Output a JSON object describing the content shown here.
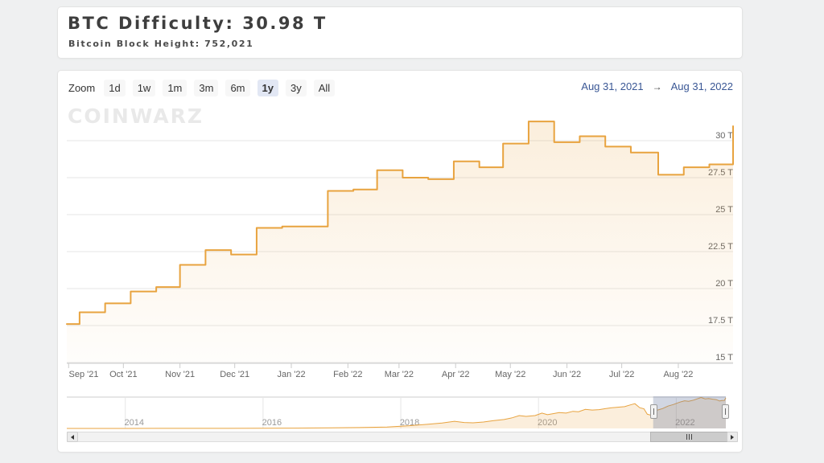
{
  "header": {
    "title": "BTC Difficulty: 30.98 T",
    "subtitle": "Bitcoin Block Height: 752,021"
  },
  "range_selector": {
    "zoom_label": "Zoom",
    "buttons": [
      "1d",
      "1w",
      "1m",
      "3m",
      "6m",
      "1y",
      "3y",
      "All"
    ],
    "selected": "1y",
    "from_date": "Aug 31, 2021",
    "arrow": "→",
    "to_date": "Aug 31, 2022"
  },
  "watermark": "CoinWarz",
  "colors": {
    "accent_orange": "#e8a33f",
    "area_fill_top": "rgba(232,163,63,0.18)",
    "area_fill_bottom": "rgba(232,163,63,0.02)",
    "gridline": "#e6e6e6",
    "axis_line": "#cccccc",
    "axis_label": "#666666",
    "nav_label": "#999999",
    "selection_mask": "rgba(102,120,160,0.3)",
    "link_blue": "#3a5795"
  },
  "chart_data": {
    "type": "area",
    "step": true,
    "title": "",
    "xlabel": "",
    "ylabel": "",
    "unit": "T",
    "grid": true,
    "legend": false,
    "series_name": "BTC Difficulty",
    "xlim_dates": [
      "2021-08-31",
      "2022-08-31"
    ],
    "ylim": [
      15,
      31.5
    ],
    "y_ticks": [
      {
        "value": 15,
        "label": "15 T"
      },
      {
        "value": 17.5,
        "label": "17.5 T"
      },
      {
        "value": 20,
        "label": "20 T"
      },
      {
        "value": 22.5,
        "label": "22.5 T"
      },
      {
        "value": 25,
        "label": "25 T"
      },
      {
        "value": 27.5,
        "label": "27.5 T"
      },
      {
        "value": 30,
        "label": "30 T"
      }
    ],
    "x_ticks": [
      {
        "date": "2021-09-01",
        "label": "Sep '21"
      },
      {
        "date": "2021-10-01",
        "label": "Oct '21"
      },
      {
        "date": "2021-11-01",
        "label": "Nov '21"
      },
      {
        "date": "2021-12-01",
        "label": "Dec '21"
      },
      {
        "date": "2022-01-01",
        "label": "Jan '22"
      },
      {
        "date": "2022-02-01",
        "label": "Feb '22"
      },
      {
        "date": "2022-03-01",
        "label": "Mar '22"
      },
      {
        "date": "2022-04-01",
        "label": "Apr '22"
      },
      {
        "date": "2022-05-01",
        "label": "May '22"
      },
      {
        "date": "2022-06-01",
        "label": "Jun '22"
      },
      {
        "date": "2022-07-01",
        "label": "Jul '22"
      },
      {
        "date": "2022-08-01",
        "label": "Aug '22"
      }
    ],
    "points": [
      [
        "2021-08-31",
        17.6
      ],
      [
        "2021-09-07",
        18.4
      ],
      [
        "2021-09-21",
        19.0
      ],
      [
        "2021-10-05",
        19.8
      ],
      [
        "2021-10-19",
        20.1
      ],
      [
        "2021-11-01",
        21.6
      ],
      [
        "2021-11-15",
        22.6
      ],
      [
        "2021-11-29",
        22.3
      ],
      [
        "2021-12-13",
        24.1
      ],
      [
        "2021-12-27",
        24.2
      ],
      [
        "2022-01-21",
        26.6
      ],
      [
        "2022-02-04",
        26.7
      ],
      [
        "2022-02-17",
        28.0
      ],
      [
        "2022-03-03",
        27.5
      ],
      [
        "2022-03-17",
        27.4
      ],
      [
        "2022-03-31",
        28.6
      ],
      [
        "2022-04-14",
        28.2
      ],
      [
        "2022-04-27",
        29.8
      ],
      [
        "2022-05-11",
        31.3
      ],
      [
        "2022-05-25",
        29.9
      ],
      [
        "2022-06-08",
        30.3
      ],
      [
        "2022-06-22",
        29.6
      ],
      [
        "2022-07-06",
        29.2
      ],
      [
        "2022-07-21",
        27.7
      ],
      [
        "2022-08-04",
        28.2
      ],
      [
        "2022-08-18",
        28.4
      ],
      [
        "2022-08-31",
        30.98
      ]
    ],
    "navigator": {
      "year_ticks": [
        2014,
        2016,
        2018,
        2020,
        2022
      ],
      "xlim_years": [
        2013.15,
        2022.72
      ],
      "selection_years": [
        2021.665,
        2022.72
      ],
      "points": [
        [
          2013.15,
          0.005
        ],
        [
          2014,
          0.03
        ],
        [
          2014.5,
          0.05
        ],
        [
          2015,
          0.06
        ],
        [
          2015.5,
          0.08
        ],
        [
          2016,
          0.17
        ],
        [
          2016.5,
          0.3
        ],
        [
          2017,
          0.6
        ],
        [
          2017.4,
          0.9
        ],
        [
          2017.8,
          1.5
        ],
        [
          2018.1,
          2.6
        ],
        [
          2018.4,
          4.3
        ],
        [
          2018.6,
          5.5
        ],
        [
          2018.78,
          7.2
        ],
        [
          2018.92,
          6.0
        ],
        [
          2019.05,
          5.7
        ],
        [
          2019.2,
          6.5
        ],
        [
          2019.35,
          7.9
        ],
        [
          2019.5,
          9.0
        ],
        [
          2019.62,
          10.8
        ],
        [
          2019.72,
          13.0
        ],
        [
          2019.82,
          12.2
        ],
        [
          2019.95,
          13.0
        ],
        [
          2020.05,
          15.5
        ],
        [
          2020.13,
          13.9
        ],
        [
          2020.22,
          15.0
        ],
        [
          2020.3,
          16.1
        ],
        [
          2020.4,
          15.5
        ],
        [
          2020.5,
          17.3
        ],
        [
          2020.58,
          16.9
        ],
        [
          2020.68,
          19.3
        ],
        [
          2020.78,
          18.6
        ],
        [
          2020.88,
          19.0
        ],
        [
          2020.97,
          20.0
        ],
        [
          2021.05,
          20.8
        ],
        [
          2021.15,
          21.5
        ],
        [
          2021.25,
          22.0
        ],
        [
          2021.33,
          23.7
        ],
        [
          2021.4,
          25.0
        ],
        [
          2021.47,
          21.0
        ],
        [
          2021.53,
          19.9
        ],
        [
          2021.58,
          14.4
        ],
        [
          2021.63,
          13.5
        ],
        [
          2021.665,
          17.6
        ],
        [
          2021.72,
          18.4
        ],
        [
          2021.8,
          20.1
        ],
        [
          2021.88,
          22.6
        ],
        [
          2021.96,
          24.2
        ],
        [
          2022.05,
          26.6
        ],
        [
          2022.12,
          28.0
        ],
        [
          2022.18,
          27.5
        ],
        [
          2022.25,
          28.6
        ],
        [
          2022.3,
          29.8
        ],
        [
          2022.36,
          31.3
        ],
        [
          2022.42,
          29.9
        ],
        [
          2022.47,
          30.3
        ],
        [
          2022.53,
          29.6
        ],
        [
          2022.58,
          29.2
        ],
        [
          2022.63,
          27.7
        ],
        [
          2022.66,
          28.2
        ],
        [
          2022.7,
          28.4
        ],
        [
          2022.72,
          30.98
        ]
      ]
    }
  }
}
